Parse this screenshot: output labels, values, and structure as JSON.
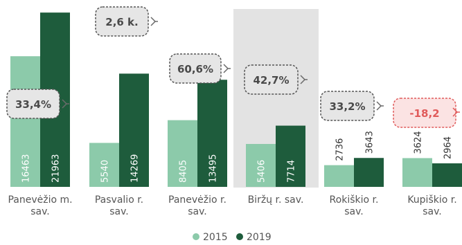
{
  "chart_data": {
    "type": "bar",
    "categories": [
      [
        "Panevėžio m.",
        "sav."
      ],
      [
        "Pasvalio r.",
        "sav."
      ],
      [
        "Panevėžio r.",
        "sav."
      ],
      [
        "Biržų r. sav."
      ],
      [
        "Rokiškio r.",
        "sav."
      ],
      [
        "Kupiškio r.",
        "sav."
      ]
    ],
    "series": [
      {
        "name": "2015",
        "values": [
          16463,
          5540,
          8405,
          5406,
          2736,
          3624
        ]
      },
      {
        "name": "2019",
        "values": [
          21963,
          14269,
          13495,
          7714,
          3643,
          2964
        ]
      }
    ],
    "callouts": [
      "33,4%",
      "2,6 k.",
      "60,6%",
      "42,7%",
      "33,2%",
      "-18,2"
    ],
    "highlight_category_index": 3,
    "ylim": [
      0,
      22500
    ],
    "legend_position": "bottom",
    "grid": false
  },
  "colors": {
    "series_2015": "#8ccaaa",
    "series_2019": "#1e5c3c",
    "highlight_bg": "#e3e3e3",
    "negative": "#e05a5a"
  }
}
